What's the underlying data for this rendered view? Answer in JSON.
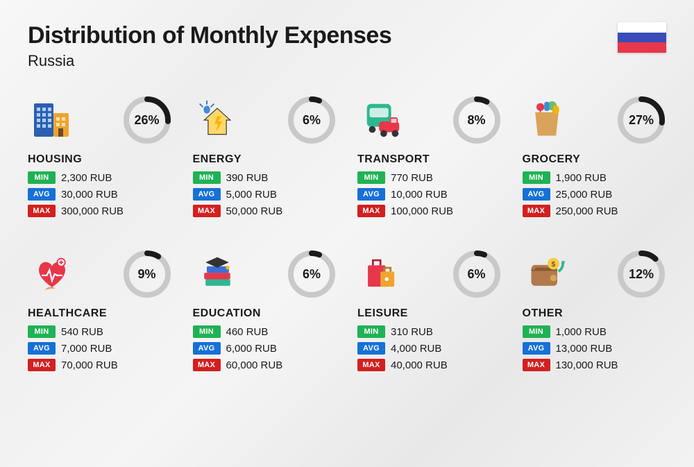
{
  "title": "Distribution of Monthly Expenses",
  "subtitle": "Russia",
  "flag_colors": [
    "#ffffff",
    "#3a4db8",
    "#e8374a"
  ],
  "currency_suffix": "RUB",
  "badges": {
    "min": {
      "label": "MIN",
      "color": "#1fb254"
    },
    "avg": {
      "label": "AVG",
      "color": "#1670d6"
    },
    "max": {
      "label": "MAX",
      "color": "#d31f1f"
    }
  },
  "donut": {
    "track_color": "#c9c9c9",
    "fill_color": "#1a1a1a",
    "stroke_width": 8,
    "radius": 30
  },
  "categories": [
    {
      "key": "housing",
      "name": "HOUSING",
      "percent": 26,
      "min": "2,300",
      "avg": "30,000",
      "max": "300,000"
    },
    {
      "key": "energy",
      "name": "ENERGY",
      "percent": 6,
      "min": "390",
      "avg": "5,000",
      "max": "50,000"
    },
    {
      "key": "transport",
      "name": "TRANSPORT",
      "percent": 8,
      "min": "770",
      "avg": "10,000",
      "max": "100,000"
    },
    {
      "key": "grocery",
      "name": "GROCERY",
      "percent": 27,
      "min": "1,900",
      "avg": "25,000",
      "max": "250,000"
    },
    {
      "key": "healthcare",
      "name": "HEALTHCARE",
      "percent": 9,
      "min": "540",
      "avg": "7,000",
      "max": "70,000"
    },
    {
      "key": "education",
      "name": "EDUCATION",
      "percent": 6,
      "min": "460",
      "avg": "6,000",
      "max": "60,000"
    },
    {
      "key": "leisure",
      "name": "LEISURE",
      "percent": 6,
      "min": "310",
      "avg": "4,000",
      "max": "40,000"
    },
    {
      "key": "other",
      "name": "OTHER",
      "percent": 12,
      "min": "1,000",
      "avg": "13,000",
      "max": "130,000"
    }
  ]
}
